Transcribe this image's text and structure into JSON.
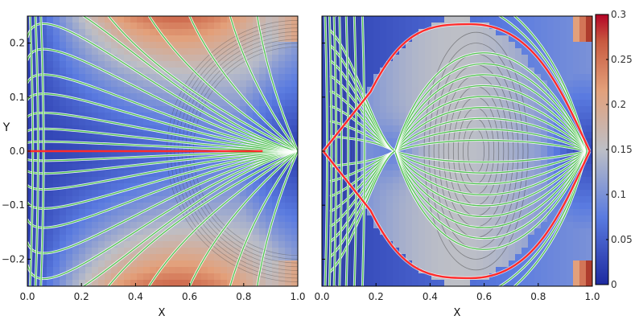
{
  "chart_data": {
    "type": "heatmap",
    "colormap": "coolwarm",
    "colors": {
      "low": "#1b2f9e",
      "mid": "#b9bcc6",
      "high": "#b40426",
      "field_lines": "#4fc24f",
      "separatrix": "#ff2b2b",
      "contours": "#333333"
    },
    "colorbar": {
      "range": [
        0,
        0.3
      ],
      "ticks": [
        "0.3",
        "0.25",
        "0.2",
        "0.15",
        "0.1",
        "0.05",
        "0"
      ]
    },
    "panels": [
      {
        "name": "left",
        "xlabel": "X",
        "ylabel": "Y",
        "xlim": [
          0.0,
          1.0
        ],
        "ylim": [
          -0.25,
          0.25
        ],
        "xticks": [
          "0.0",
          "0.2",
          "0.4",
          "0.6",
          "0.8",
          "1.0"
        ],
        "yticks": [
          "0.2",
          "0.1",
          "0.0",
          "−0.1",
          "−0.2"
        ],
        "separatrix": [
          [
            0.0,
            0.0
          ],
          [
            0.87,
            0.0
          ]
        ],
        "focus": [
          1.0,
          0.0
        ],
        "field_line_y0": [
          -0.24,
          -0.2,
          -0.16,
          -0.12,
          -0.09,
          -0.06,
          -0.035,
          -0.015,
          0.015,
          0.035,
          0.06,
          0.09,
          0.12,
          0.16,
          0.2,
          0.24
        ]
      },
      {
        "name": "right",
        "xlabel": "X",
        "xlim": [
          0.0,
          1.0
        ],
        "ylim": [
          -0.25,
          0.25
        ],
        "xticks": [
          "0.0",
          "0.2",
          "0.4",
          "0.6",
          "0.8",
          "1.0"
        ],
        "separatrix_peak": [
          0.55,
          0.235
        ],
        "separatrix_left": [
          0.0,
          0.0
        ],
        "separatrix_right": [
          0.99,
          0.0
        ],
        "x_point": [
          0.27,
          0.0
        ],
        "focus": [
          0.98,
          0.0
        ]
      }
    ]
  }
}
